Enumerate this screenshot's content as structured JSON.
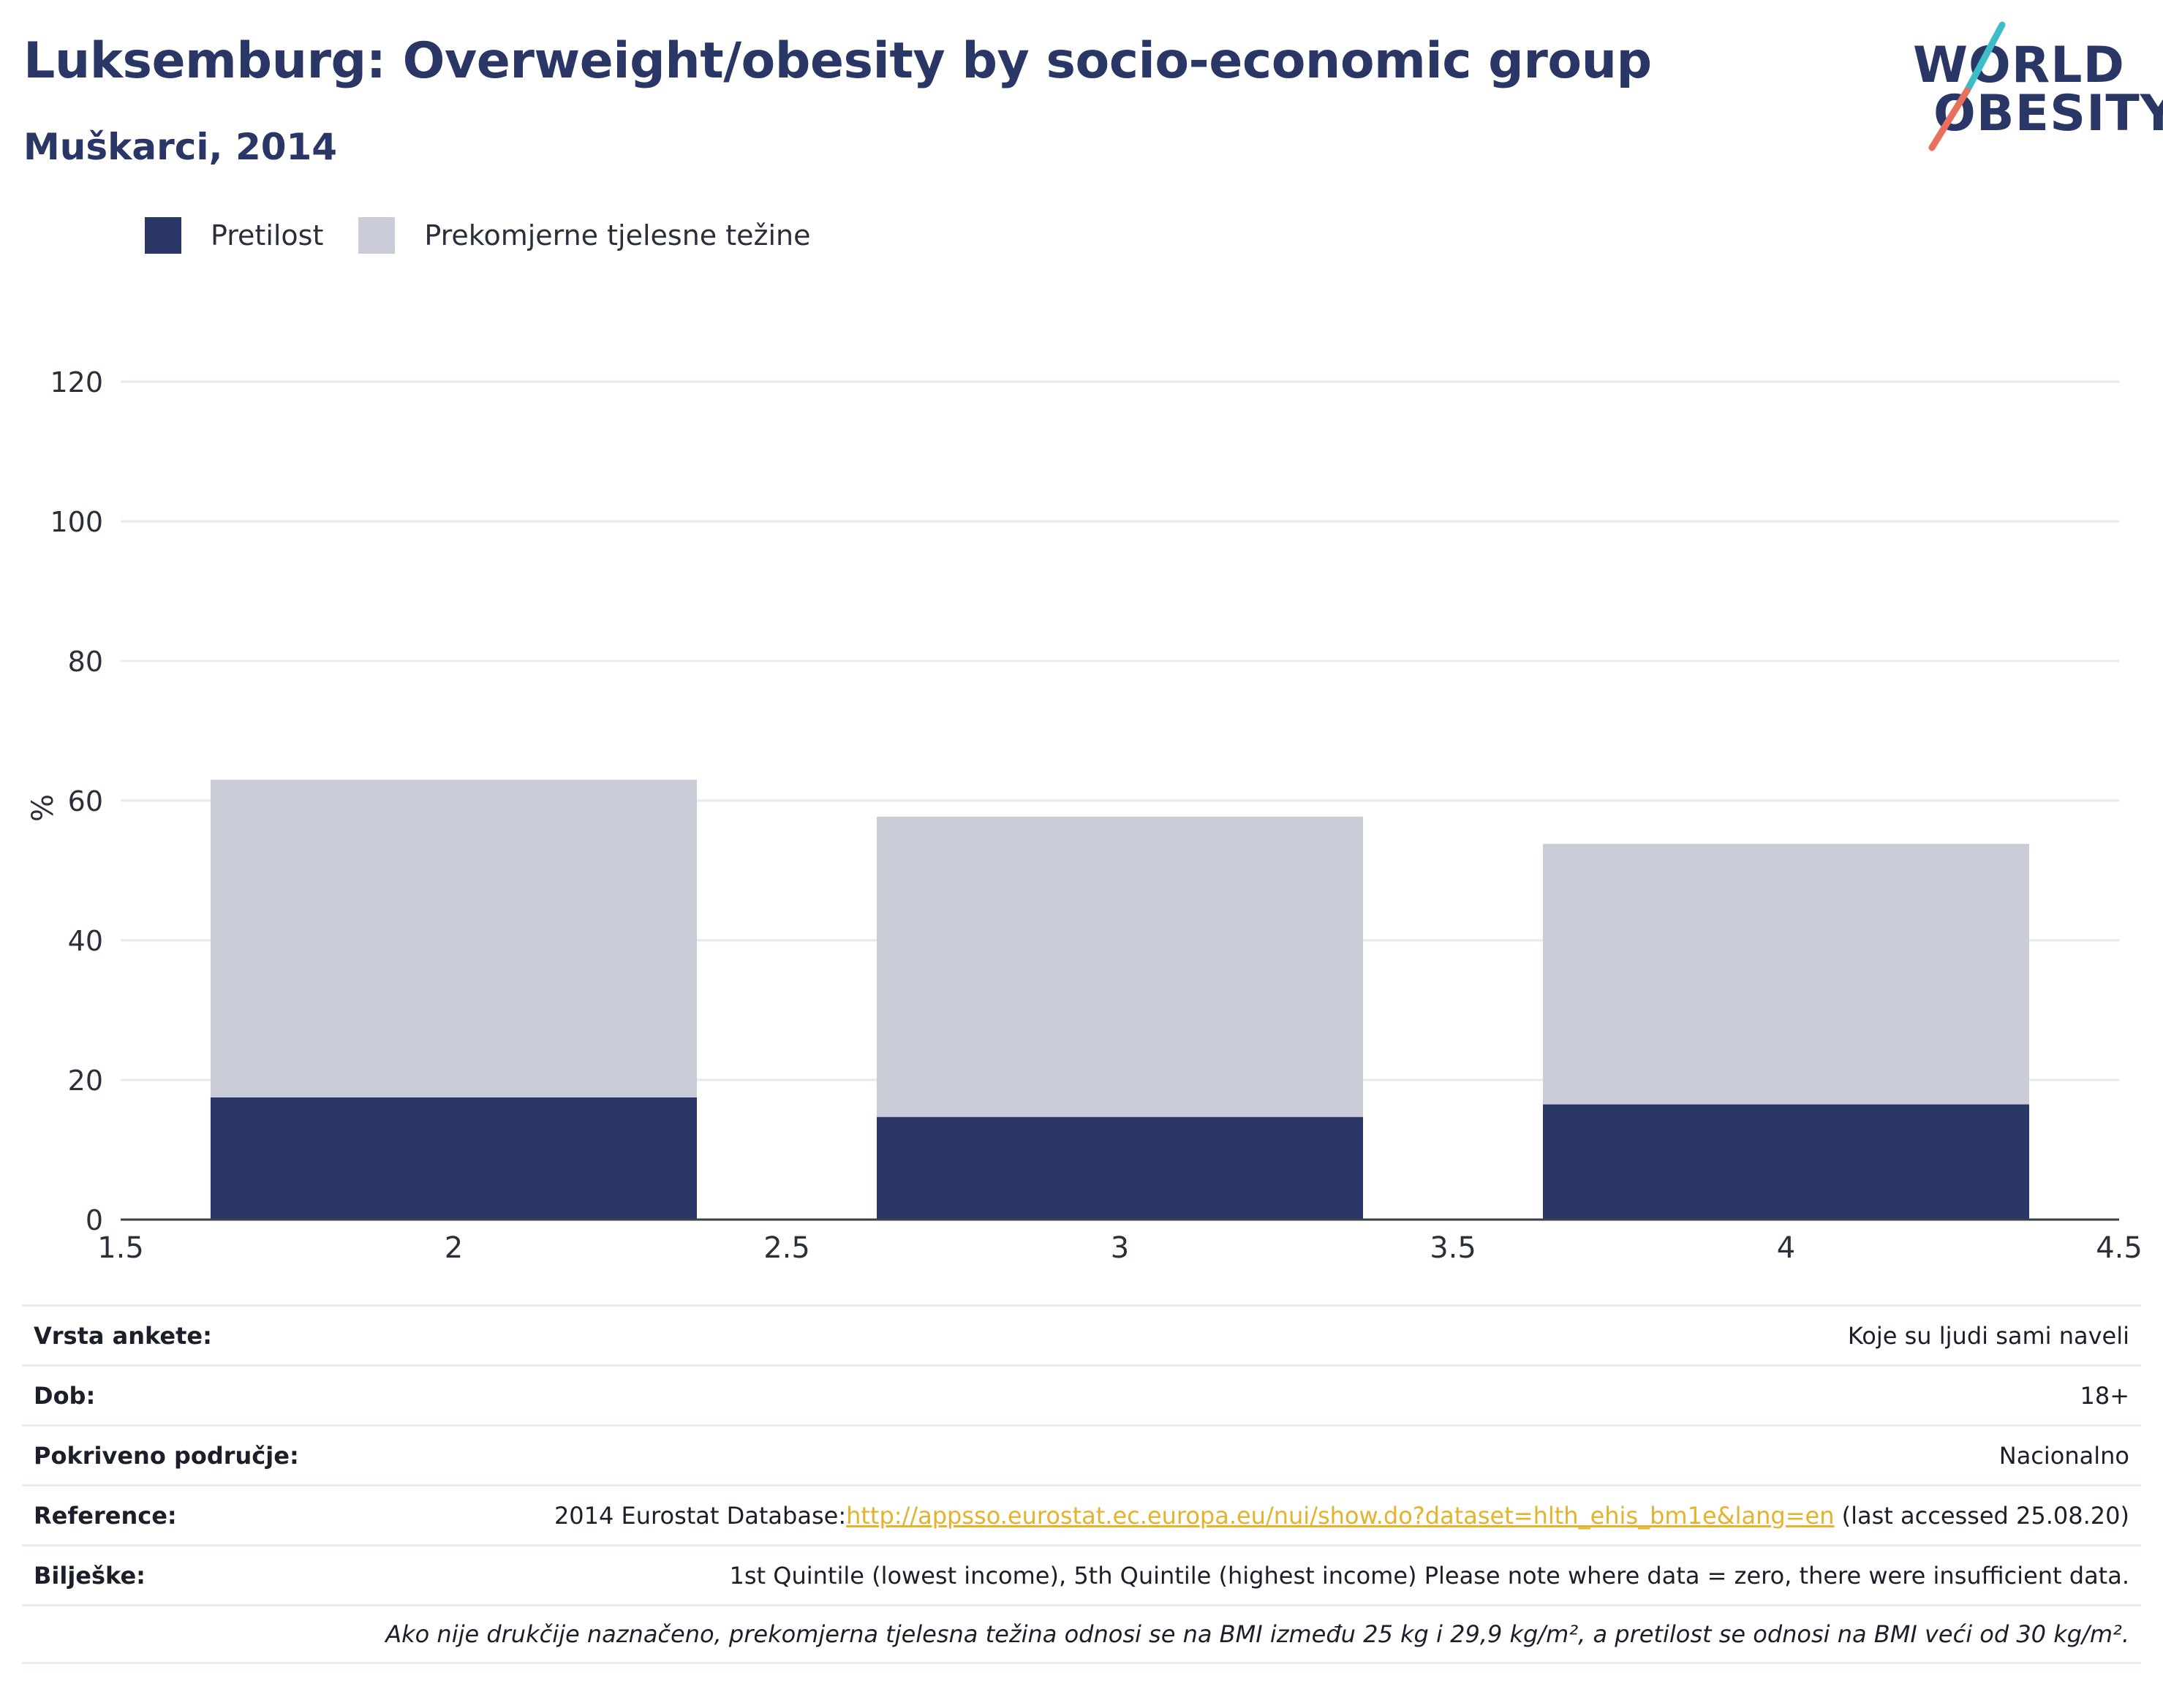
{
  "header": {
    "title": "Luksemburg: Overweight/obesity by socio-economic group",
    "subtitle": "Muškarci, 2014"
  },
  "logo": {
    "line1": "WORLD",
    "line2": "OBESITY",
    "accent_teal": "#3dbdc6",
    "accent_coral": "#e8705c"
  },
  "colors": {
    "obesity": "#2a3665",
    "overweight": "#caccd7",
    "text": "#2a3665"
  },
  "chart_data": {
    "type": "bar",
    "stacked": true,
    "x": [
      2,
      3,
      4
    ],
    "series": [
      {
        "name": "Pretilost",
        "color": "#2a3665",
        "values": [
          17.5,
          14.7,
          16.5
        ]
      },
      {
        "name": "Prekomjerne tjelesne težine",
        "color": "#caccd7",
        "values": [
          45.5,
          43.0,
          37.3
        ]
      }
    ],
    "xlim": [
      1.5,
      4.5
    ],
    "ylim": [
      0,
      120
    ],
    "xticks": [
      "1.5",
      "2",
      "2.5",
      "3",
      "3.5",
      "4",
      "4.5"
    ],
    "yticks": [
      "0",
      "20",
      "40",
      "60",
      "80",
      "100",
      "120"
    ],
    "xtick_values": [
      1.5,
      2,
      2.5,
      3,
      3.5,
      4,
      4.5
    ],
    "ytick_values": [
      0,
      20,
      40,
      60,
      80,
      100,
      120
    ],
    "bar_width": 0.73,
    "ylabel": "%",
    "grid": true,
    "legend_position": "top-left"
  },
  "info": {
    "survey_label": "Vrsta ankete:",
    "survey_value": "Koje su ljudi sami naveli",
    "age_label": "Dob:",
    "age_value": "18+",
    "area_label": "Pokriveno područje:",
    "area_value": "Nacionalno",
    "ref_label": "Reference:",
    "ref_prefix": "2014 Eurostat Database:",
    "ref_link": "http://appsso.eurostat.ec.europa.eu/nui/show.do?dataset=hlth_ehis_bm1e&lang=en",
    "ref_suffix": " (last accessed 25.08.20)",
    "notes_label": "Bilješke:",
    "notes_value": "1st Quintile (lowest income), 5th Quintile (highest income) Please note where data = zero, there were insufficient data.",
    "footnote": "Ako nije drukčije naznačeno, prekomjerna tjelesna težina odnosi se na BMI između 25 kg i 29,9 kg/m², a pretilost se odnosi na BMI veći od 30 kg/m²."
  }
}
